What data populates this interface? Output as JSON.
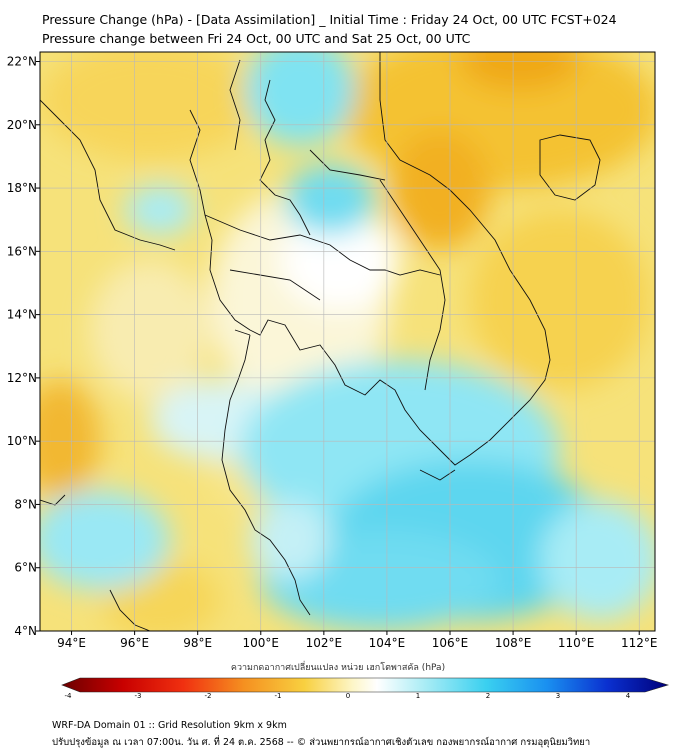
{
  "header": {
    "title_line1": "Pressure Change (hPa) - [Data Assimilation] _ Initial Time : Friday 24 Oct, 00 UTC FCST+024",
    "title_line2": "Pressure change between Fri 24 Oct, 00 UTC and Sat 25 Oct, 00 UTC"
  },
  "map": {
    "lon_labels": [
      "94°E",
      "96°E",
      "98°E",
      "100°E",
      "102°E",
      "104°E",
      "106°E",
      "108°E",
      "110°E",
      "112°E"
    ],
    "lat_labels": [
      "22°N",
      "20°N",
      "18°N",
      "16°N",
      "14°N",
      "12°N",
      "10°N",
      "8°N",
      "6°N",
      "4°N"
    ],
    "lon_values": [
      94,
      96,
      98,
      100,
      102,
      104,
      106,
      108,
      110,
      112
    ],
    "lat_values": [
      22,
      20,
      18,
      16,
      14,
      12,
      10,
      8,
      6,
      4
    ],
    "lon_range": [
      93,
      112.5
    ],
    "lat_range": [
      4,
      22.3
    ],
    "grid": true
  },
  "colorbar": {
    "title": "ความกดอากาศเปลี่ยนแปลง หน่วย เฮกโตพาสคัล (hPa)",
    "ticks": [
      "-4",
      "-3",
      "-2",
      "-1",
      "0",
      "1",
      "2",
      "3",
      "4"
    ],
    "tick_values": [
      -4,
      -3,
      -2,
      -1,
      0,
      1,
      2,
      3,
      4
    ],
    "range": [
      -4,
      4
    ]
  },
  "footer": {
    "line1": "WRF-DA Domain 01 :: Grid Resolution 9km x 9km",
    "line2": "ปรับปรุงข้อมูล ณ เวลา 07:00น. วัน ศ. ที่ 24 ต.ค. 2568 -- © ส่วนพยากรณ์อากาศเชิงตัวเลข กองพยากรณ์อากาศ กรมอุตุนิยมวิทยา"
  }
}
